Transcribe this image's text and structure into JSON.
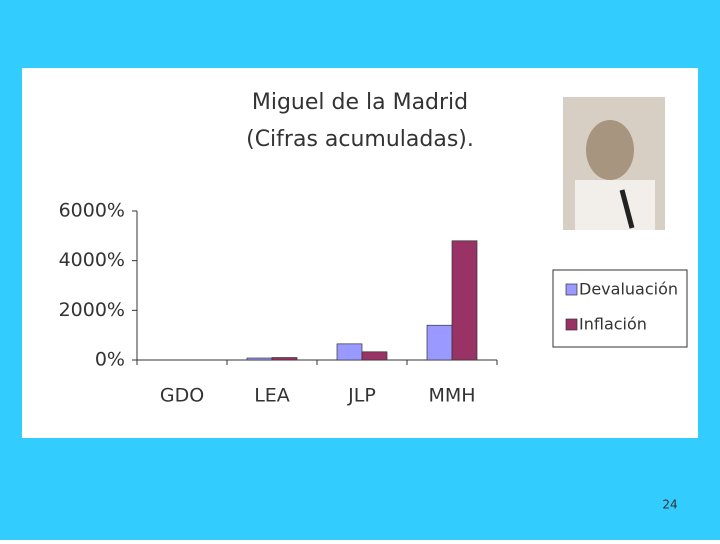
{
  "chart_data": {
    "type": "bar",
    "title": "Miguel de la Madrid",
    "subtitle": "(Cifras acumuladas).",
    "categories": [
      "GDO",
      "LEA",
      "JLP",
      "MMH"
    ],
    "series": [
      {
        "name": "Devaluación",
        "color": "#9999ff",
        "values": [
          0,
          80,
          650,
          1400
        ]
      },
      {
        "name": "Inflación",
        "color": "#993366",
        "values": [
          0,
          100,
          330,
          4800
        ]
      }
    ],
    "ylim": [
      0,
      6000
    ],
    "yticks": [
      {
        "value": 0,
        "label": "0%"
      },
      {
        "value": 2000,
        "label": "2000%"
      },
      {
        "value": 4000,
        "label": "4000%"
      },
      {
        "value": 6000,
        "label": "6000%"
      }
    ],
    "legend": "right"
  },
  "page_number": 24
}
